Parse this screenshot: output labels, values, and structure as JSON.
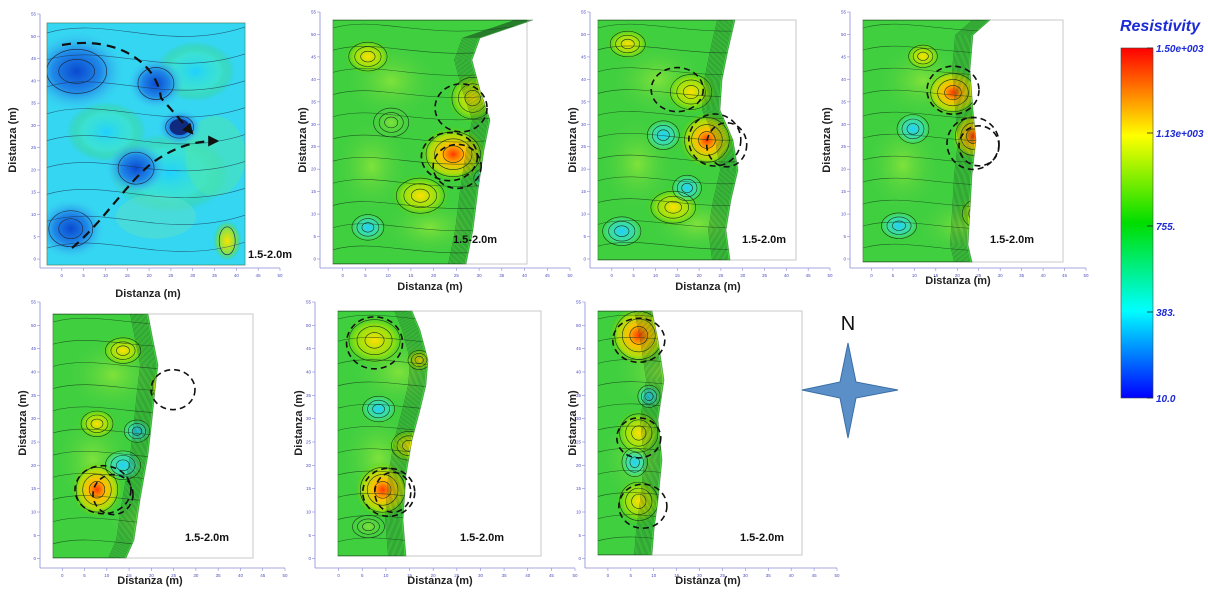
{
  "colorbar": {
    "title": "Resistivity",
    "tick_labels": [
      "1.50e+003",
      "1.13e+003",
      "755.",
      "383.",
      "10.0"
    ],
    "tick_values": [
      1500,
      1130,
      755,
      383,
      10
    ],
    "range": [
      10,
      1500
    ],
    "colors": [
      "#0000ff",
      "#00ffff",
      "#00dd00",
      "#ffff00",
      "#ff0000"
    ]
  },
  "compass": {
    "label": "N",
    "color": "#5b8fc8"
  },
  "chart_data": [
    {
      "type": "heatmap",
      "depth_label": "1.5-2.0m",
      "xlabel": "Distanza (m)",
      "ylabel": "Distanza (m)",
      "x_ticks": [
        "0",
        "5",
        "10",
        "15",
        "20",
        "25",
        "30",
        "35",
        "40",
        "45",
        "50"
      ],
      "y_ticks": [
        "0",
        "5",
        "10",
        "15",
        "20",
        "25",
        "30",
        "35",
        "40",
        "45",
        "50",
        "55"
      ],
      "xlim": [
        -5,
        50
      ],
      "ylim": [
        -2,
        55
      ],
      "anomalies_center_m": [
        [
          8,
          7
        ],
        [
          21,
          20
        ],
        [
          30,
          28
        ],
        [
          24,
          40
        ],
        [
          40,
          5
        ]
      ],
      "field_style": "low"
    },
    {
      "type": "heatmap",
      "depth_label": "1.5-2.0m",
      "xlabel": "Distanza (m)",
      "ylabel": "Distanza (m)",
      "x_ticks": [
        "0",
        "5",
        "10",
        "15",
        "20",
        "25",
        "30",
        "35",
        "40",
        "45",
        "50"
      ],
      "y_ticks": [
        "0",
        "5",
        "10",
        "15",
        "20",
        "25",
        "30",
        "35",
        "40",
        "45",
        "50",
        "55"
      ],
      "xlim": [
        -5,
        50
      ],
      "ylim": [
        -2,
        55
      ],
      "anomalies_center_m": [
        [
          26,
          25
        ],
        [
          30,
          34
        ]
      ],
      "field_style": "high"
    },
    {
      "type": "heatmap",
      "depth_label": "1.5-2.0m",
      "xlabel": "Distanza (m)",
      "ylabel": "Distanza (m)",
      "x_ticks": [
        "0",
        "5",
        "10",
        "15",
        "20",
        "25",
        "30",
        "35",
        "40",
        "45",
        "50"
      ],
      "y_ticks": [
        "0",
        "5",
        "10",
        "15",
        "20",
        "25",
        "30",
        "35",
        "40",
        "45",
        "50",
        "55"
      ],
      "xlim": [
        -5,
        50
      ],
      "ylim": [
        -2,
        55
      ],
      "anomalies_center_m": [
        [
          15,
          38
        ],
        [
          26,
          26
        ]
      ],
      "field_style": "high"
    },
    {
      "type": "heatmap",
      "depth_label": "1.5-2.0m",
      "xlabel": "Distanza (m)",
      "ylabel": "Distanza (m)",
      "x_ticks": [
        "0",
        "5",
        "10",
        "15",
        "20",
        "25",
        "30",
        "35",
        "40",
        "45",
        "50"
      ],
      "y_ticks": [
        "0",
        "5",
        "10",
        "15",
        "20",
        "25",
        "30",
        "35",
        "40",
        "45",
        "50",
        "55"
      ],
      "xlim": [
        -5,
        50
      ],
      "ylim": [
        -2,
        55
      ],
      "anomalies_center_m": [
        [
          17,
          39
        ],
        [
          26,
          28
        ]
      ],
      "field_style": "high"
    },
    {
      "type": "heatmap",
      "depth_label": "1.5-2.0m",
      "xlabel": "Distanza (m)",
      "ylabel": "Distanza (m)",
      "x_ticks": [
        "0",
        "5",
        "10",
        "15",
        "20",
        "25",
        "30",
        "35",
        "40",
        "45",
        "50"
      ],
      "y_ticks": [
        "0",
        "5",
        "10",
        "15",
        "20",
        "25",
        "30",
        "35",
        "40",
        "45",
        "50",
        "55"
      ],
      "xlim": [
        -5,
        50
      ],
      "ylim": [
        -2,
        55
      ],
      "anomalies_center_m": [
        [
          20,
          37
        ],
        [
          10,
          17
        ]
      ],
      "field_style": "high"
    },
    {
      "type": "heatmap",
      "depth_label": "1.5-2.0m",
      "xlabel": "Distanza (m)",
      "ylabel": "Distanza (m)",
      "x_ticks": [
        "0",
        "5",
        "10",
        "15",
        "20",
        "25",
        "30",
        "35",
        "40",
        "45",
        "50"
      ],
      "y_ticks": [
        "0",
        "5",
        "10",
        "15",
        "20",
        "25",
        "30",
        "35",
        "40",
        "45",
        "50",
        "55"
      ],
      "xlim": [
        -5,
        50
      ],
      "ylim": [
        -2,
        55
      ],
      "anomalies_center_m": [
        [
          5,
          47
        ],
        [
          9,
          15
        ]
      ],
      "field_style": "high"
    },
    {
      "type": "heatmap",
      "depth_label": "1.5-2.0m",
      "xlabel": "Distanza (m)",
      "ylabel": "Distanza (m)",
      "x_ticks": [
        "0",
        "5",
        "10",
        "15",
        "20",
        "25",
        "30",
        "35",
        "40",
        "45",
        "50"
      ],
      "y_ticks": [
        "0",
        "5",
        "10",
        "15",
        "20",
        "25",
        "30",
        "35",
        "40",
        "45",
        "50",
        "55"
      ],
      "xlim": [
        -5,
        50
      ],
      "ylim": [
        -2,
        55
      ],
      "anomalies_center_m": [
        [
          5,
          48
        ],
        [
          6,
          27
        ],
        [
          7,
          12
        ]
      ],
      "field_style": "high"
    }
  ]
}
